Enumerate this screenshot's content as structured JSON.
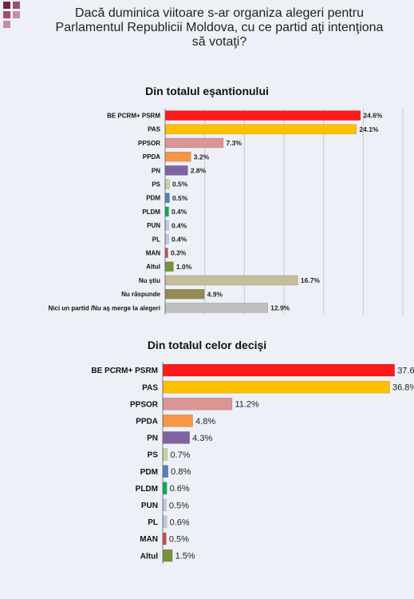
{
  "title": "Dacă duminica viitoare s-ar organiza alegeri pentru Parlamentul Republicii Moldova, cu ce partid aţi intenţiona să votaţi?",
  "title_lines": [
    "Dacă duminica viitoare s-ar organiza alegeri pentru",
    "Parlamentul Republicii Moldova, cu ce partid aţi intenţiona",
    "să votaţi?"
  ],
  "colors": {
    "red": "#ff1a1a",
    "yellow": "#ffc000",
    "pink": "#d99694",
    "orange": "#f79646",
    "purple": "#8064a2",
    "lightgreen": "#c3d69b",
    "blue": "#4f81bd",
    "green": "#00b050",
    "lightblue": "#b9cde5",
    "maroon": "#c0504d",
    "darkgreen": "#77933c",
    "beige": "#c4bd97",
    "olive": "#948a54",
    "gray": "#bfbfbf"
  },
  "chart_data": [
    {
      "type": "bar",
      "orientation": "horizontal",
      "title": "Din totalul eşantionului",
      "xlim": [
        0,
        30
      ],
      "grid": true,
      "categories": [
        "BE PCRM+ PSRM",
        "PAS",
        "PPSOR",
        "PPDA",
        "PN",
        "PS",
        "PDM",
        "PLDM",
        "PUN",
        "PL",
        "MAN",
        "Altul",
        "Nu ştiu",
        "Nu răspunde",
        "Nici un partid /Nu aş merge la alegeri"
      ],
      "values": [
        24.6,
        24.1,
        7.3,
        3.2,
        2.8,
        0.5,
        0.5,
        0.4,
        0.4,
        0.4,
        0.3,
        1.0,
        16.7,
        4.9,
        12.9
      ],
      "labels": [
        "24.6%",
        "24.1%",
        "7.3%",
        "3.2%",
        "2.8%",
        "0.5%",
        "0.5%",
        "0.4%",
        "0.4%",
        "0.4%",
        "0.3%",
        "1.0%",
        "16.7%",
        "4.9%",
        "12.9%"
      ],
      "bar_colors": [
        "#ff1a1a",
        "#ffc000",
        "#d99694",
        "#f79646",
        "#8064a2",
        "#c3d69b",
        "#4f81bd",
        "#00b050",
        "#b9cde5",
        "#b9cde5",
        "#c0504d",
        "#77933c",
        "#c4bd97",
        "#948a54",
        "#bfbfbf"
      ]
    },
    {
      "type": "bar",
      "orientation": "horizontal",
      "title": "Din totalul celor decişi",
      "xlim": [
        0,
        39
      ],
      "grid": false,
      "categories": [
        "BE PCRM+ PSRM",
        "PAS",
        "PPSOR",
        "PPDA",
        "PN",
        "PS",
        "PDM",
        "PLDM",
        "PUN",
        "PL",
        "MAN",
        "Altul"
      ],
      "values": [
        37.6,
        36.8,
        11.2,
        4.8,
        4.3,
        0.7,
        0.8,
        0.6,
        0.5,
        0.6,
        0.5,
        1.5
      ],
      "labels": [
        "37.6%",
        "36.8%",
        "11.2%",
        "4.8%",
        "4.3%",
        "0.7%",
        "0.8%",
        "0.6%",
        "0.5%",
        "0.6%",
        "0.5%",
        "1.5%"
      ],
      "bar_colors": [
        "#ff1a1a",
        "#ffc000",
        "#d99694",
        "#f79646",
        "#8064a2",
        "#c3d69b",
        "#4f81bd",
        "#00b050",
        "#b9cde5",
        "#b9cde5",
        "#c0504d",
        "#77933c"
      ]
    }
  ]
}
